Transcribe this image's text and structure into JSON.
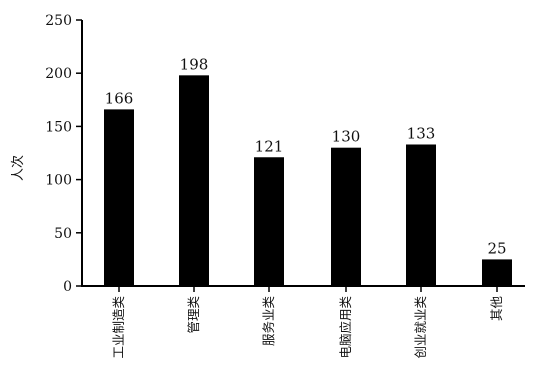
{
  "chart_data": {
    "type": "bar",
    "categories": [
      "工业制造类",
      "管理类",
      "服务业类",
      "电脑应用类",
      "创业就业类",
      "其他"
    ],
    "values": [
      166,
      198,
      121,
      130,
      133,
      25
    ],
    "data_labels": [
      "166",
      "198",
      "121",
      "130",
      "133",
      "25"
    ],
    "title": "",
    "xlabel": "",
    "ylabel": "人次",
    "ylim": [
      0,
      250
    ],
    "yticks": [
      0,
      50,
      100,
      150,
      200,
      250
    ],
    "grid": false,
    "legend": "none",
    "bar_color": "#000000"
  }
}
